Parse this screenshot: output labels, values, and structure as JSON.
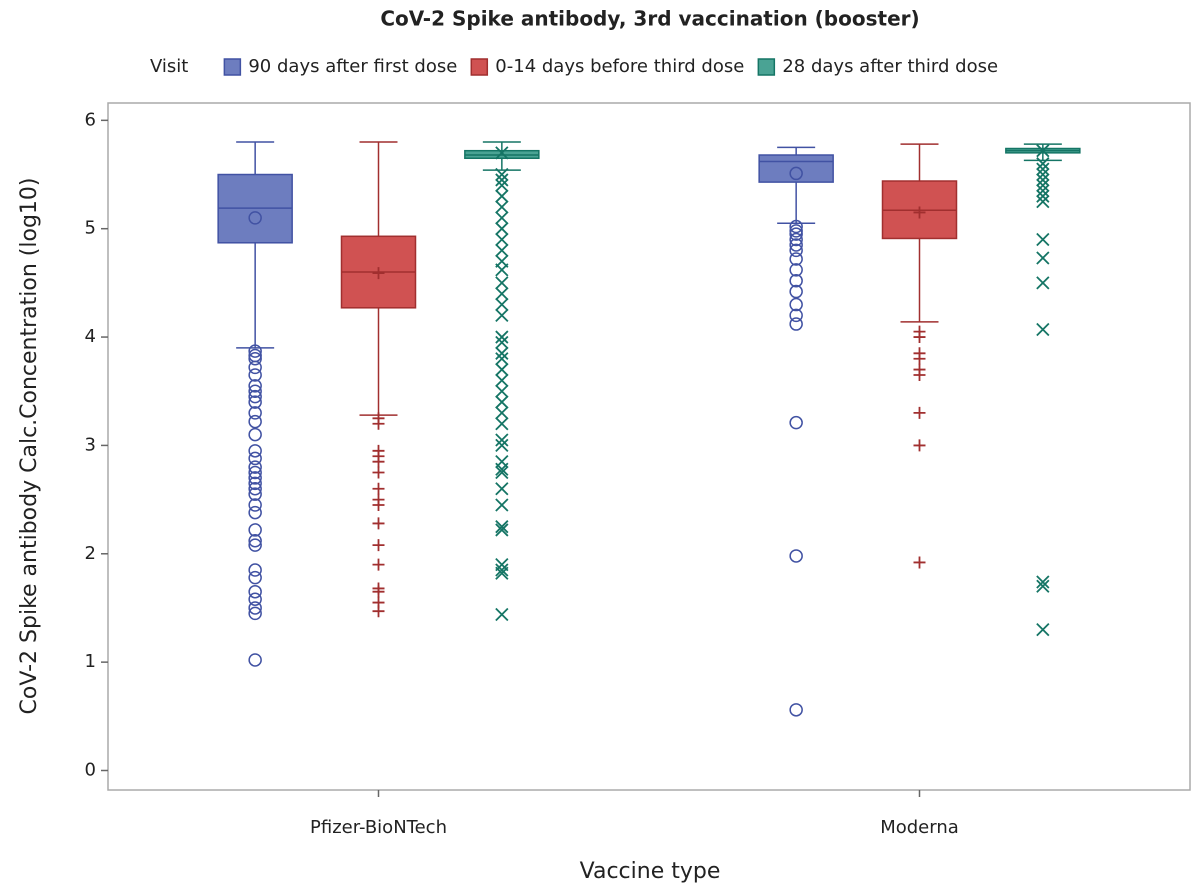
{
  "chart_data": {
    "type": "box",
    "title": "CoV-2 Spike antibody, 3rd vaccination (booster)",
    "legend_title": "Visit",
    "legend_position": "top",
    "x_label": "Vaccine type",
    "y_label": "CoV-2 Spike antibody Calc.Concentration (log10)",
    "categories": [
      "Pfizer-BioNTech",
      "Moderna"
    ],
    "ylim": [
      -0.18,
      6.16
    ],
    "yticks": [
      0,
      1,
      2,
      3,
      4,
      5,
      6
    ],
    "series": [
      {
        "name": "90 days after first dose",
        "color": "#6d7dbf",
        "line_color": "#4152a3",
        "marker": "circle",
        "values": [
          {
            "min": 3.9,
            "q1": 4.87,
            "median": 5.19,
            "q3": 5.5,
            "max": 5.8,
            "mean": 5.1,
            "outliers": [
              3.87,
              3.83,
              3.8,
              3.72,
              3.65,
              3.55,
              3.5,
              3.45,
              3.4,
              3.3,
              3.22,
              3.1,
              2.95,
              2.88,
              2.8,
              2.75,
              2.7,
              2.65,
              2.6,
              2.55,
              2.45,
              2.38,
              2.22,
              2.12,
              2.08,
              1.85,
              1.78,
              1.65,
              1.58,
              1.5,
              1.45,
              1.02
            ]
          },
          {
            "min": 5.05,
            "q1": 5.43,
            "median": 5.62,
            "q3": 5.68,
            "max": 5.75,
            "mean": 5.51,
            "outliers": [
              5.02,
              4.98,
              4.95,
              4.9,
              4.85,
              4.8,
              4.72,
              4.62,
              4.52,
              4.42,
              4.3,
              4.2,
              4.12,
              3.21,
              1.98,
              0.56
            ]
          }
        ]
      },
      {
        "name": "0-14 days before third dose",
        "color": "#d05252",
        "line_color": "#a12f2f",
        "marker": "plus",
        "values": [
          {
            "min": 3.28,
            "q1": 4.27,
            "median": 4.6,
            "q3": 4.93,
            "max": 5.8,
            "mean": 4.59,
            "outliers": [
              3.25,
              3.2,
              2.95,
              2.9,
              2.85,
              2.75,
              2.6,
              2.5,
              2.45,
              2.28,
              2.08,
              1.9,
              1.68,
              1.65,
              1.55,
              1.47
            ]
          },
          {
            "min": 4.14,
            "q1": 4.91,
            "median": 5.17,
            "q3": 5.44,
            "max": 5.78,
            "mean": 5.15,
            "outliers": [
              4.05,
              4.0,
              3.85,
              3.8,
              3.7,
              3.65,
              3.3,
              3.0,
              1.92
            ]
          }
        ]
      },
      {
        "name": "28 days after third dose",
        "color": "#4aa394",
        "line_color": "#157565",
        "marker": "x",
        "values": [
          {
            "min": 5.54,
            "q1": 5.65,
            "median": 5.68,
            "q3": 5.72,
            "max": 5.8,
            "mean": 5.7,
            "outliers": [
              5.5,
              5.45,
              5.4,
              5.3,
              5.2,
              5.1,
              5.0,
              4.9,
              4.8,
              4.7,
              4.62,
              4.5,
              4.4,
              4.3,
              4.2,
              4.0,
              3.95,
              3.85,
              3.8,
              3.7,
              3.6,
              3.5,
              3.4,
              3.3,
              3.2,
              3.05,
              3.0,
              2.85,
              2.78,
              2.75,
              2.6,
              2.45,
              2.25,
              2.22,
              1.9,
              1.85,
              1.82,
              1.44
            ]
          },
          {
            "min": 5.63,
            "q1": 5.7,
            "median": 5.72,
            "q3": 5.74,
            "max": 5.78,
            "mean": 5.72,
            "outliers": [
              5.6,
              5.55,
              5.5,
              5.45,
              5.4,
              5.35,
              5.3,
              5.25,
              4.9,
              4.73,
              4.5,
              4.07,
              1.74,
              1.7,
              1.3
            ]
          }
        ]
      }
    ]
  }
}
